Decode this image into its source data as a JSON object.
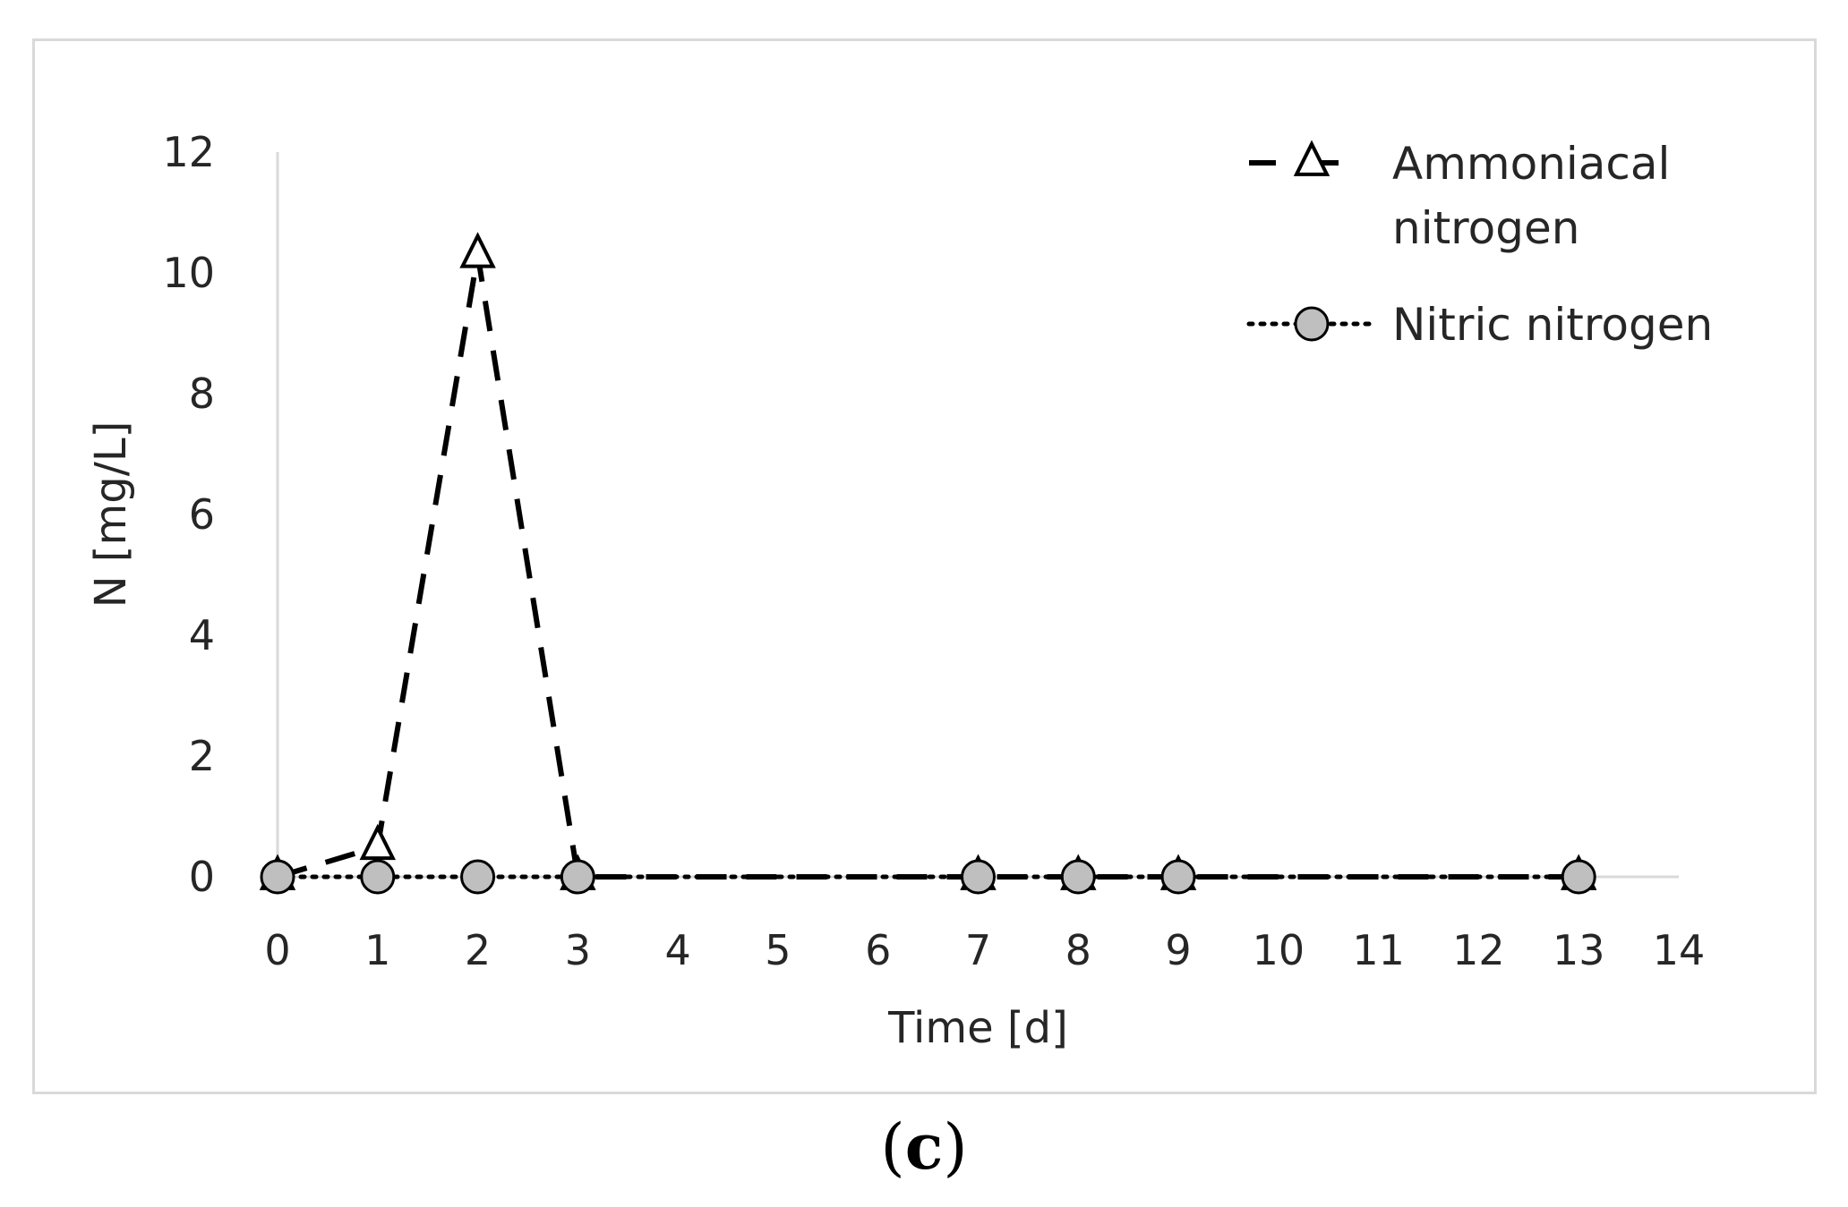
{
  "chart_data": {
    "type": "line",
    "x": [
      0,
      1,
      2,
      3,
      7,
      8,
      9,
      13
    ],
    "xticks": [
      "0",
      "1",
      "2",
      "3",
      "4",
      "5",
      "6",
      "7",
      "8",
      "9",
      "10",
      "11",
      "12",
      "13",
      "14"
    ],
    "yticks": [
      "0",
      "2",
      "4",
      "6",
      "8",
      "10",
      "12"
    ],
    "xlim": [
      0,
      14
    ],
    "ylim": [
      0,
      12
    ],
    "xlabel": "Time [d]",
    "ylabel": "N [mg/L]",
    "grid": false,
    "legend_position": "top-right",
    "series": [
      {
        "name": "Ammoniacal nitrogen",
        "name_lines": [
          "Ammoniacal",
          "nitrogen"
        ],
        "values": [
          0,
          0.5,
          10.3,
          0,
          0,
          0,
          0,
          0
        ],
        "marker": "triangle-open",
        "line": "dashed",
        "color": "#000000"
      },
      {
        "name": "Nitric nitrogen",
        "values": [
          0,
          0,
          0,
          0,
          0,
          0,
          0,
          0
        ],
        "marker": "circle-filled",
        "line": "dotted",
        "color": "#000000",
        "marker_fill": "#bfbfbf"
      }
    ]
  },
  "caption": {
    "open": "(",
    "letter": "c",
    "close": ")"
  }
}
